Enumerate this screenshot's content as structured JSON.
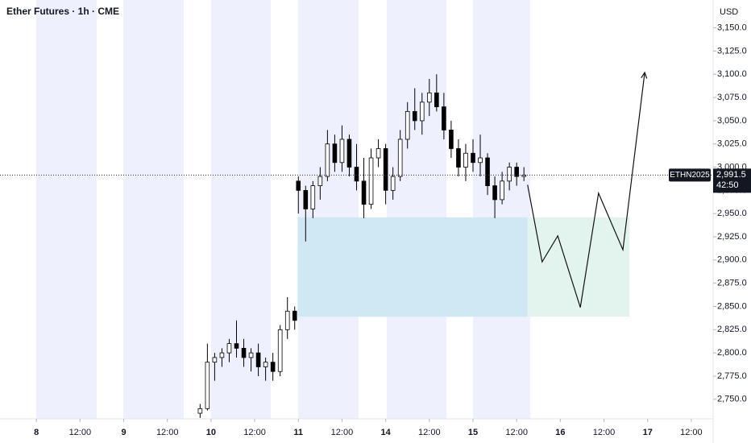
{
  "chart_data": {
    "type": "candlestick",
    "title": "Ether Futures · 1h · CME",
    "currency_label": "USD",
    "symbol": "ETHN2025",
    "last_price": {
      "value": 2991.5,
      "label": "2,991.5"
    },
    "countdown": "42:50",
    "up_color": "#ffffff",
    "down_color": "#000000",
    "x": [
      45,
      47,
      49,
      51,
      53,
      55,
      57,
      59,
      61,
      63,
      65,
      67,
      69,
      71,
      72,
      74,
      76,
      78,
      80,
      82,
      84,
      86,
      88,
      90,
      92,
      94,
      96,
      98,
      100,
      102,
      104,
      106,
      108,
      110,
      112,
      114,
      116,
      118,
      120,
      122,
      124,
      126,
      128,
      130,
      132,
      134
    ],
    "open": [
      2735,
      2740,
      2790,
      2795,
      2800,
      2810,
      2805,
      2795,
      2800,
      2785,
      2790,
      2780,
      2825,
      2845,
      2985,
      2975,
      2955,
      2980,
      2990,
      3025,
      3005,
      3030,
      3000,
      2985,
      2960,
      3010,
      3020,
      2975,
      2990,
      3030,
      3060,
      3050,
      3070,
      3080,
      3065,
      3040,
      3020,
      3000,
      3015,
      3005,
      3010,
      2980,
      2965,
      2985,
      3000,
      2990
    ],
    "high": [
      2745,
      2810,
      2800,
      2805,
      2815,
      2835,
      2815,
      2805,
      2810,
      2795,
      2800,
      2830,
      2860,
      2850,
      2990,
      2980,
      2985,
      3000,
      3040,
      3035,
      3045,
      3035,
      3025,
      3010,
      3020,
      3030,
      3025,
      3000,
      3040,
      3070,
      3085,
      3080,
      3095,
      3100,
      3080,
      3050,
      3030,
      3025,
      3030,
      3035,
      3015,
      2990,
      2995,
      3005,
      3005,
      3000
    ],
    "low": [
      2730,
      2738,
      2770,
      2785,
      2790,
      2795,
      2785,
      2780,
      2775,
      2770,
      2770,
      2775,
      2815,
      2825,
      2950,
      2920,
      2945,
      2965,
      2985,
      2995,
      2995,
      2990,
      2975,
      2945,
      2955,
      3000,
      2960,
      2965,
      2985,
      3020,
      3040,
      3035,
      3055,
      3060,
      3030,
      3010,
      2990,
      2985,
      2995,
      2990,
      2970,
      2945,
      2960,
      2975,
      2980,
      2985
    ],
    "close": [
      2740,
      2790,
      2795,
      2800,
      2810,
      2805,
      2795,
      2800,
      2785,
      2790,
      2780,
      2825,
      2845,
      2835,
      2975,
      2955,
      2980,
      2990,
      3025,
      3005,
      3030,
      3000,
      2985,
      2960,
      3010,
      3020,
      2975,
      2990,
      3030,
      3060,
      3050,
      3070,
      3080,
      3065,
      3040,
      3020,
      3000,
      3015,
      3005,
      3010,
      2980,
      2965,
      2985,
      3000,
      2990,
      2991.5
    ],
    "xlim": [
      -10,
      186
    ],
    "xticks": [
      {
        "value": 0,
        "label": "8"
      },
      {
        "value": 12,
        "label": "12:00"
      },
      {
        "value": 24,
        "label": "9"
      },
      {
        "value": 36,
        "label": "12:00"
      },
      {
        "value": 48,
        "label": "10"
      },
      {
        "value": 60,
        "label": "12:00"
      },
      {
        "value": 72,
        "label": "11"
      },
      {
        "value": 84,
        "label": "12:00"
      },
      {
        "value": 96,
        "label": "14"
      },
      {
        "value": 108,
        "label": "12:00"
      },
      {
        "value": 120,
        "label": "15"
      },
      {
        "value": 132,
        "label": "12:00"
      },
      {
        "value": 144,
        "label": "16"
      },
      {
        "value": 156,
        "label": "12:00"
      },
      {
        "value": 168,
        "label": "17"
      },
      {
        "value": 180,
        "label": "12:00"
      }
    ],
    "ylim": [
      2729,
      3180
    ],
    "yticks": [
      {
        "value": 2750,
        "label": "2,750.0"
      },
      {
        "value": 2775,
        "label": "2,775.0"
      },
      {
        "value": 2800,
        "label": "2,800.0"
      },
      {
        "value": 2825,
        "label": "2,825.0"
      },
      {
        "value": 2850,
        "label": "2,850.0"
      },
      {
        "value": 2875,
        "label": "2,875.0"
      },
      {
        "value": 2900,
        "label": "2,900.0"
      },
      {
        "value": 2925,
        "label": "2,925.0"
      },
      {
        "value": 2950,
        "label": "2,950.0"
      },
      {
        "value": 2975,
        "label": "2,975.0"
      },
      {
        "value": 3000,
        "label": "3,000.0"
      },
      {
        "value": 3025,
        "label": "3,025.0"
      },
      {
        "value": 3050,
        "label": "3,050.0"
      },
      {
        "value": 3075,
        "label": "3,075.0"
      },
      {
        "value": 3100,
        "label": "3,100.0"
      },
      {
        "value": 3125,
        "label": "3,125.0"
      },
      {
        "value": 3150,
        "label": "3,150.0"
      }
    ],
    "zones": [
      {
        "x": [
          71.8,
          135
        ],
        "y": [
          2839,
          2946
        ],
        "color": "#cfe8f3"
      },
      {
        "x": [
          135,
          163
        ],
        "y": [
          2839,
          2946
        ],
        "color": "#e3f4ee"
      }
    ],
    "projection": {
      "x": [
        135,
        139,
        143.3,
        149.5,
        154.5,
        161.2,
        167.2
      ],
      "y": [
        2981,
        2898,
        2926,
        2849,
        2972,
        2911,
        3102
      ],
      "color": "#111111"
    }
  }
}
